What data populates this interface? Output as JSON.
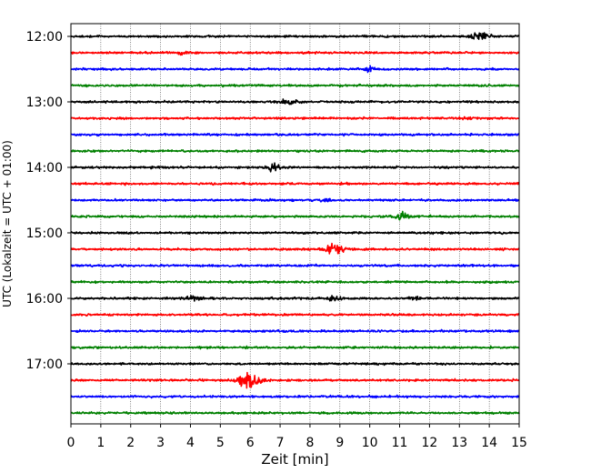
{
  "chart_data": {
    "type": "line",
    "title": "",
    "xlabel": "Zeit  [min]",
    "ylabel": "UTC (Lokalzeit = UTC + 01:00)",
    "xlim": [
      0,
      15
    ],
    "x_ticks": [
      "0",
      "1",
      "2",
      "3",
      "4",
      "5",
      "6",
      "7",
      "8",
      "9",
      "10",
      "11",
      "12",
      "13",
      "14",
      "15"
    ],
    "y_tick_labels": [
      "12:00",
      "13:00",
      "14:00",
      "15:00",
      "16:00",
      "17:00"
    ],
    "grid": "vertical dotted",
    "color_cycle": [
      "#000000",
      "#ff0000",
      "#0000ff",
      "#008000"
    ],
    "trace_start_times": [
      "12:00",
      "12:15",
      "12:30",
      "12:45",
      "13:00",
      "13:15",
      "13:30",
      "13:45",
      "14:00",
      "14:15",
      "14:30",
      "14:45",
      "15:00",
      "15:15",
      "15:30",
      "15:45",
      "16:00",
      "16:15",
      "16:30",
      "16:45",
      "17:00",
      "17:15",
      "17:30",
      "17:45"
    ],
    "events": [
      {
        "trace": "12:00",
        "minute": 13.7,
        "amplitude": 1.6
      },
      {
        "trace": "12:15",
        "minute": 3.7,
        "amplitude": 0.6
      },
      {
        "trace": "12:30",
        "minute": 10.0,
        "amplitude": 0.7
      },
      {
        "trace": "13:00",
        "minute": 7.3,
        "amplitude": 0.9
      },
      {
        "trace": "13:15",
        "minute": 13.1,
        "amplitude": 0.6
      },
      {
        "trace": "14:00",
        "minute": 6.8,
        "amplitude": 1.0
      },
      {
        "trace": "14:30",
        "minute": 8.6,
        "amplitude": 0.4
      },
      {
        "trace": "14:45",
        "minute": 11.1,
        "amplitude": 1.1
      },
      {
        "trace": "15:15",
        "minute": 8.8,
        "amplitude": 1.9
      },
      {
        "trace": "16:00",
        "minute": 4.1,
        "amplitude": 0.7
      },
      {
        "trace": "16:00",
        "minute": 8.8,
        "amplitude": 0.6
      },
      {
        "trace": "16:00",
        "minute": 11.5,
        "amplitude": 0.5
      },
      {
        "trace": "17:15",
        "minute": 6.0,
        "amplitude": 2.6
      }
    ]
  }
}
